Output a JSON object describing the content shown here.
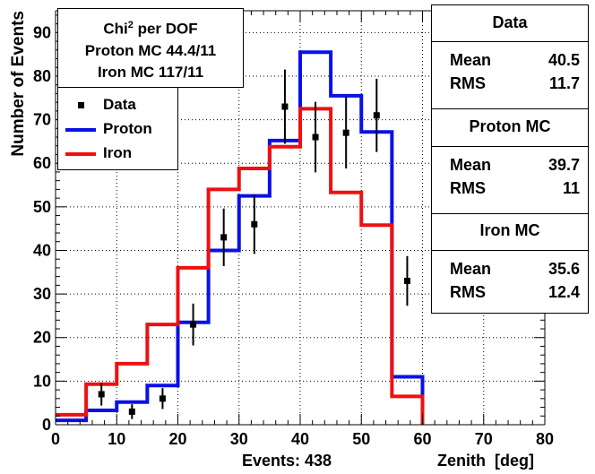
{
  "chart_data": {
    "type": "histogram",
    "xlabel": "Zenith  [deg]",
    "ylabel": "Number of Events",
    "xlim": [
      0,
      80
    ],
    "ylim": [
      0,
      95
    ],
    "xticks": [
      0,
      10,
      20,
      30,
      40,
      50,
      60,
      70,
      80
    ],
    "yticks": [
      0,
      10,
      20,
      30,
      40,
      50,
      60,
      70,
      80,
      90
    ],
    "grid": true,
    "bin_edges": [
      0,
      5,
      10,
      15,
      20,
      25,
      30,
      35,
      40,
      45,
      50,
      55,
      60
    ],
    "series": [
      {
        "name": "Data",
        "style": "points-errorbars",
        "color": "#000000",
        "x": [
          7.5,
          12.5,
          17.5,
          22.5,
          27.5,
          32.5,
          37.5,
          42.5,
          47.5,
          52.5,
          57.5
        ],
        "values": [
          7,
          3,
          6,
          23,
          43,
          46,
          73,
          66,
          67,
          71,
          33
        ],
        "errors": [
          2.6,
          1.7,
          2.4,
          4.8,
          6.6,
          6.8,
          8.5,
          8.1,
          8.2,
          8.4,
          5.7
        ]
      },
      {
        "name": "Proton",
        "style": "step",
        "color": "#0a10e6",
        "values": [
          1,
          3.3,
          5.2,
          9,
          23.5,
          40,
          52.5,
          65.2,
          85.5,
          75.5,
          67.2,
          11
        ]
      },
      {
        "name": "Iron",
        "style": "step",
        "color": "#ee1010",
        "values": [
          2.3,
          9.3,
          14,
          23,
          36,
          54,
          58.8,
          63.8,
          72.5,
          53.3,
          45.8,
          6.5
        ]
      }
    ],
    "footer_left": "Events: 438",
    "chi_box": {
      "title_base": "Chi",
      "title_sup": "2",
      "title_rest": " per DOF",
      "lines": [
        "Proton MC 44.4/11",
        "Iron MC 117/11"
      ]
    },
    "stats": [
      {
        "name": "Data",
        "mean_label": "Mean",
        "mean": "40.5",
        "rms_label": "RMS",
        "rms": "11.7"
      },
      {
        "name": "Proton MC",
        "mean_label": "Mean",
        "mean": "39.7",
        "rms_label": "RMS",
        "rms": "11"
      },
      {
        "name": "Iron MC",
        "mean_label": "Mean",
        "mean": "35.6",
        "rms_label": "RMS",
        "rms": "12.4"
      }
    ]
  }
}
